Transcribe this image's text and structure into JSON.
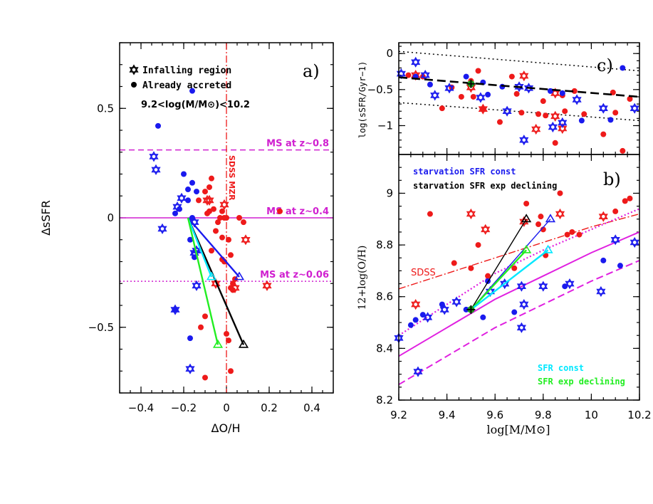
{
  "colors": {
    "blue": "#1a1aee",
    "red": "#ee1a1a",
    "magenta": "#e020e0",
    "black": "#000000",
    "cyan": "#00e8ff",
    "green": "#22ee22",
    "ms_line": "#d020d0"
  },
  "chart_data": [
    {
      "panel": "a",
      "type": "scatter",
      "panel_label": "a)",
      "xlabel": "ΔO/H",
      "ylabel": "ΔsSFR",
      "xlim": [
        -0.5,
        0.5
      ],
      "ylim": [
        -0.8,
        0.8
      ],
      "xticks": [
        -0.4,
        -0.2,
        0,
        0.2,
        0.4
      ],
      "xtick_labels": [
        "−0.4",
        "−0.2",
        "0",
        "0.2",
        "0.4"
      ],
      "yticks": [
        -0.5,
        0,
        0.5
      ],
      "ytick_labels": [
        "−0.5",
        "0",
        "0.5"
      ],
      "legend": {
        "infalling": "Infalling region",
        "accreted": "Already accreted",
        "mass_range": "9.2<log(M/M⊙)<10.2"
      },
      "hlines": [
        {
          "y": 0.31,
          "label": "MS at z~0.8",
          "style": "dashed"
        },
        {
          "y": 0.0,
          "label": "MS at z~0.4",
          "style": "solid"
        },
        {
          "y": -0.29,
          "label": "MS at z~0.06",
          "style": "dotted"
        }
      ],
      "vline": {
        "x": 0.0,
        "label": "SDSS MZR",
        "style": "dashdot"
      },
      "blue_dots": [
        [
          -0.16,
          0.58
        ],
        [
          -0.32,
          0.42
        ],
        [
          -0.2,
          0.2
        ],
        [
          -0.18,
          0.13
        ],
        [
          -0.16,
          0.16
        ],
        [
          -0.14,
          0.12
        ],
        [
          -0.18,
          0.08
        ],
        [
          -0.22,
          0.04
        ],
        [
          -0.24,
          0.02
        ],
        [
          -0.17,
          -0.1
        ],
        [
          -0.16,
          0.0
        ],
        [
          -0.15,
          -0.18
        ],
        [
          -0.24,
          -0.42
        ],
        [
          -0.17,
          -0.55
        ]
      ],
      "blue_stars": [
        [
          -0.34,
          0.28
        ],
        [
          -0.33,
          0.22
        ],
        [
          -0.21,
          0.09
        ],
        [
          -0.23,
          0.05
        ],
        [
          -0.3,
          -0.05
        ],
        [
          -0.15,
          -0.02
        ],
        [
          -0.14,
          -0.15
        ],
        [
          -0.15,
          -0.16
        ],
        [
          -0.14,
          -0.31
        ],
        [
          -0.24,
          -0.42
        ],
        [
          -0.17,
          -0.69
        ]
      ],
      "red_dots": [
        [
          -0.07,
          0.18
        ],
        [
          -0.08,
          0.14
        ],
        [
          -0.1,
          0.12
        ],
        [
          -0.13,
          0.08
        ],
        [
          -0.09,
          0.02
        ],
        [
          -0.08,
          0.03
        ],
        [
          -0.06,
          0.04
        ],
        [
          -0.04,
          -0.02
        ],
        [
          -0.02,
          0.03
        ],
        [
          -0.01,
          0.0
        ],
        [
          0.0,
          0.0
        ],
        [
          -0.03,
          0.0
        ],
        [
          -0.05,
          -0.06
        ],
        [
          -0.07,
          -0.15
        ],
        [
          -0.02,
          -0.09
        ],
        [
          0.01,
          -0.1
        ],
        [
          0.02,
          -0.17
        ],
        [
          -0.02,
          -0.19
        ],
        [
          -0.01,
          -0.2
        ],
        [
          0.04,
          -0.28
        ],
        [
          0.03,
          -0.3
        ],
        [
          0.02,
          -0.32
        ],
        [
          0.0,
          -0.53
        ],
        [
          0.01,
          -0.56
        ],
        [
          0.02,
          -0.7
        ],
        [
          -0.1,
          -0.73
        ],
        [
          -0.1,
          -0.45
        ],
        [
          -0.12,
          -0.5
        ],
        [
          0.06,
          0.0
        ],
        [
          0.08,
          -0.02
        ],
        [
          0.25,
          0.03
        ],
        [
          0.03,
          -0.33
        ]
      ],
      "red_stars": [
        [
          -0.09,
          0.08
        ],
        [
          -0.08,
          0.08
        ],
        [
          -0.01,
          0.06
        ],
        [
          0.04,
          -0.32
        ],
        [
          0.09,
          -0.1
        ],
        [
          0.19,
          -0.31
        ],
        [
          -0.05,
          -0.3
        ]
      ],
      "tracks": [
        {
          "color": "blue",
          "from": [
            -0.18,
            0.0
          ],
          "to": [
            0.06,
            -0.27
          ],
          "marker": "triangle"
        },
        {
          "color": "black",
          "from": [
            -0.18,
            0.0
          ],
          "to": [
            0.08,
            -0.58
          ],
          "marker": "triangle"
        },
        {
          "color": "cyan",
          "from": [
            -0.18,
            0.0
          ],
          "to": [
            -0.07,
            -0.27
          ],
          "marker": "triangle"
        },
        {
          "color": "green",
          "from": [
            -0.18,
            0.0
          ],
          "to": [
            -0.04,
            -0.58
          ],
          "marker": "triangle"
        }
      ]
    },
    {
      "panel": "c",
      "type": "scatter",
      "panel_label": "c)",
      "ylabel": "log(sSFR/Gyr−1)",
      "xlim": [
        9.2,
        10.2
      ],
      "ylim": [
        -1.4,
        0.15
      ],
      "yticks": [
        0,
        -0.5,
        -1
      ],
      "ytick_labels": [
        "0",
        "−0.5",
        "−1"
      ],
      "fit_line": {
        "x": [
          9.2,
          10.2
        ],
        "y": [
          -0.33,
          -0.6
        ]
      },
      "upper_dotted": {
        "x": [
          9.2,
          10.2
        ],
        "y": [
          0.03,
          -0.24
        ]
      },
      "lower_dotted": {
        "x": [
          9.2,
          10.2
        ],
        "y": [
          -0.68,
          -0.93
        ]
      },
      "blue_dots": [
        [
          9.27,
          -0.32
        ],
        [
          9.33,
          -0.43
        ],
        [
          9.48,
          -0.32
        ],
        [
          9.55,
          -0.4
        ],
        [
          9.57,
          -0.57
        ],
        [
          9.63,
          -0.46
        ],
        [
          9.83,
          -0.52
        ],
        [
          9.88,
          -0.55
        ],
        [
          9.96,
          -0.93
        ],
        [
          10.08,
          -0.92
        ],
        [
          10.13,
          -0.2
        ]
      ],
      "blue_stars": [
        [
          9.21,
          -0.28
        ],
        [
          9.27,
          -0.12
        ],
        [
          9.31,
          -0.3
        ],
        [
          9.35,
          -0.58
        ],
        [
          9.41,
          -0.48
        ],
        [
          9.54,
          -0.61
        ],
        [
          9.65,
          -0.8
        ],
        [
          9.7,
          -0.46
        ],
        [
          9.74,
          -0.48
        ],
        [
          9.72,
          -1.2
        ],
        [
          9.84,
          -1.02
        ],
        [
          9.88,
          -0.96
        ],
        [
          9.94,
          -0.64
        ],
        [
          10.05,
          -0.76
        ],
        [
          10.18,
          -0.76
        ]
      ],
      "red_dots": [
        [
          9.24,
          -0.3
        ],
        [
          9.3,
          -0.32
        ],
        [
          9.38,
          -0.76
        ],
        [
          9.42,
          -0.47
        ],
        [
          9.46,
          -0.6
        ],
        [
          9.5,
          -0.38
        ],
        [
          9.51,
          -0.6
        ],
        [
          9.53,
          -0.24
        ],
        [
          9.55,
          -0.77
        ],
        [
          9.62,
          -0.95
        ],
        [
          9.67,
          -0.32
        ],
        [
          9.69,
          -0.56
        ],
        [
          9.71,
          -0.82
        ],
        [
          9.78,
          -0.84
        ],
        [
          9.8,
          -0.66
        ],
        [
          9.81,
          -0.86
        ],
        [
          9.85,
          -1.24
        ],
        [
          9.88,
          -0.58
        ],
        [
          9.89,
          -0.8
        ],
        [
          9.93,
          -0.52
        ],
        [
          9.97,
          -0.84
        ],
        [
          10.05,
          -1.12
        ],
        [
          10.09,
          -0.54
        ],
        [
          10.1,
          -0.82
        ],
        [
          10.13,
          -1.35
        ],
        [
          10.16,
          -0.63
        ]
      ],
      "red_stars": [
        [
          9.27,
          -0.3
        ],
        [
          9.5,
          -0.47
        ],
        [
          9.55,
          -0.77
        ],
        [
          9.72,
          -0.31
        ],
        [
          9.77,
          -1.05
        ],
        [
          9.85,
          -0.87
        ],
        [
          9.88,
          -1.04
        ],
        [
          9.85,
          -0.55
        ]
      ]
    },
    {
      "panel": "b",
      "type": "scatter",
      "panel_label": "b)",
      "xlabel": "log[M/M⊙]",
      "ylabel": "12+log(O/H)",
      "xlim": [
        9.2,
        10.2
      ],
      "ylim": [
        8.2,
        9.15
      ],
      "xticks": [
        9.2,
        9.4,
        9.6,
        9.8,
        10,
        10.2
      ],
      "xtick_labels": [
        "9.2",
        "9.4",
        "9.6",
        "9.8",
        "10",
        "10.2"
      ],
      "yticks": [
        8.2,
        8.4,
        8.6,
        8.8,
        9
      ],
      "ytick_labels": [
        "8.2",
        "8.4",
        "8.6",
        "8.8",
        "9"
      ],
      "legend": {
        "starvation_const": "starvation SFR const",
        "starvation_exp": "starvation SFR exp declining",
        "sdss": "SDSS",
        "sfr_const": "SFR const",
        "sfr_exp": "SFR exp declining"
      },
      "sdss_curve": {
        "x": [
          9.2,
          9.4,
          9.6,
          9.8,
          10.0,
          10.2
        ],
        "y": [
          8.63,
          8.69,
          8.75,
          8.81,
          8.87,
          8.92
        ]
      },
      "magenta_solid": {
        "x": [
          9.2,
          9.4,
          9.6,
          9.8,
          10.0,
          10.2
        ],
        "y": [
          8.37,
          8.48,
          8.59,
          8.68,
          8.77,
          8.85
        ]
      },
      "magenta_dashed": {
        "x": [
          9.2,
          9.4,
          9.6,
          9.8,
          10.0,
          10.2
        ],
        "y": [
          8.26,
          8.37,
          8.48,
          8.57,
          8.66,
          8.74
        ]
      },
      "magenta_dotted": {
        "x": [
          9.2,
          9.4,
          9.6,
          9.8,
          10.0,
          10.2
        ],
        "y": [
          8.45,
          8.57,
          8.69,
          8.78,
          8.86,
          8.94
        ]
      },
      "blue_dots": [
        [
          9.25,
          8.49
        ],
        [
          9.27,
          8.51
        ],
        [
          9.3,
          8.53
        ],
        [
          9.38,
          8.57
        ],
        [
          9.48,
          8.55
        ],
        [
          9.55,
          8.52
        ],
        [
          9.68,
          8.54
        ],
        [
          9.89,
          8.64
        ],
        [
          10.05,
          8.74
        ],
        [
          10.12,
          8.72
        ],
        [
          9.57,
          8.66
        ]
      ],
      "blue_stars": [
        [
          9.2,
          8.44
        ],
        [
          9.28,
          8.31
        ],
        [
          9.32,
          8.52
        ],
        [
          9.39,
          8.55
        ],
        [
          9.44,
          8.58
        ],
        [
          9.58,
          8.62
        ],
        [
          9.64,
          8.65
        ],
        [
          9.71,
          8.48
        ],
        [
          9.72,
          8.57
        ],
        [
          9.71,
          8.64
        ],
        [
          9.8,
          8.64
        ],
        [
          9.91,
          8.65
        ],
        [
          10.04,
          8.62
        ],
        [
          10.1,
          8.82
        ],
        [
          10.18,
          8.81
        ]
      ],
      "red_dots": [
        [
          9.33,
          8.92
        ],
        [
          9.43,
          8.73
        ],
        [
          9.5,
          8.71
        ],
        [
          9.53,
          8.8
        ],
        [
          9.57,
          8.68
        ],
        [
          9.68,
          8.71
        ],
        [
          9.73,
          8.96
        ],
        [
          9.78,
          8.88
        ],
        [
          9.79,
          8.91
        ],
        [
          9.8,
          8.86
        ],
        [
          9.81,
          8.76
        ],
        [
          9.87,
          9.0
        ],
        [
          9.9,
          8.84
        ],
        [
          9.92,
          8.85
        ],
        [
          9.95,
          8.84
        ],
        [
          10.1,
          8.93
        ],
        [
          10.14,
          8.97
        ],
        [
          10.16,
          8.98
        ]
      ],
      "red_stars": [
        [
          9.27,
          8.57
        ],
        [
          9.5,
          8.92
        ],
        [
          9.56,
          8.86
        ],
        [
          9.72,
          8.89
        ],
        [
          9.87,
          8.92
        ],
        [
          10.05,
          8.91
        ]
      ],
      "origin": [
        9.5,
        8.55
      ],
      "tracks": [
        {
          "color": "black",
          "from": [
            9.5,
            8.55
          ],
          "to": [
            9.73,
            8.9
          ],
          "marker": "triangle"
        },
        {
          "color": "blue",
          "from": [
            9.5,
            8.55
          ],
          "to": [
            9.83,
            8.9
          ],
          "marker": "triangle"
        },
        {
          "color": "green",
          "from": [
            9.5,
            8.55
          ],
          "to": [
            9.73,
            8.78
          ],
          "marker": "triangle"
        },
        {
          "color": "cyan",
          "from": [
            9.5,
            8.55
          ],
          "to": [
            9.82,
            8.78
          ],
          "marker": "triangle"
        }
      ]
    }
  ]
}
